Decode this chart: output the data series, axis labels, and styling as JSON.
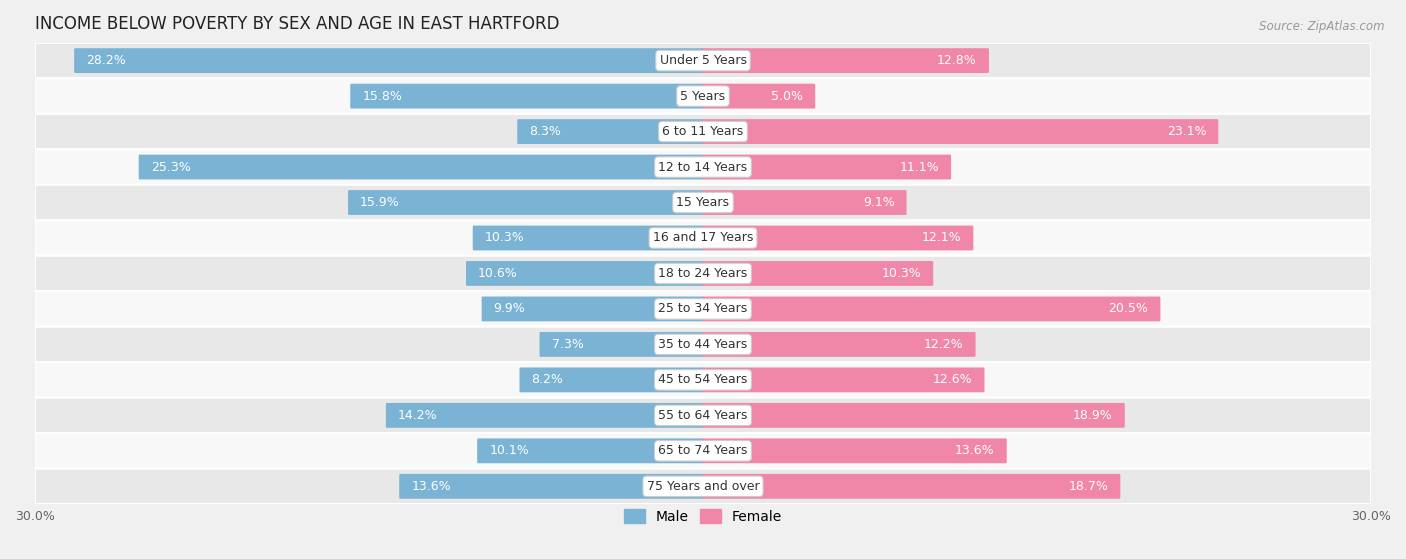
{
  "title": "INCOME BELOW POVERTY BY SEX AND AGE IN EAST HARTFORD",
  "source": "Source: ZipAtlas.com",
  "categories": [
    "Under 5 Years",
    "5 Years",
    "6 to 11 Years",
    "12 to 14 Years",
    "15 Years",
    "16 and 17 Years",
    "18 to 24 Years",
    "25 to 34 Years",
    "35 to 44 Years",
    "45 to 54 Years",
    "55 to 64 Years",
    "65 to 74 Years",
    "75 Years and over"
  ],
  "male_values": [
    28.2,
    15.8,
    8.3,
    25.3,
    15.9,
    10.3,
    10.6,
    9.9,
    7.3,
    8.2,
    14.2,
    10.1,
    13.6
  ],
  "female_values": [
    12.8,
    5.0,
    23.1,
    11.1,
    9.1,
    12.1,
    10.3,
    20.5,
    12.2,
    12.6,
    18.9,
    13.6,
    18.7
  ],
  "male_color": "#7ab3d4",
  "female_color": "#f086a8",
  "male_label_color_light": "#ffffff",
  "male_label_color_dark": "#888888",
  "female_label_color_light": "#ffffff",
  "female_label_color_dark": "#888888",
  "axis_max": 30.0,
  "background_color": "#f0f0f0",
  "row_bg_colors": [
    "#e8e8e8",
    "#f8f8f8"
  ],
  "legend_male": "Male",
  "legend_female": "Female",
  "title_fontsize": 12,
  "source_fontsize": 8.5,
  "label_fontsize": 9,
  "category_fontsize": 9,
  "axis_fontsize": 9,
  "bar_height": 0.62
}
